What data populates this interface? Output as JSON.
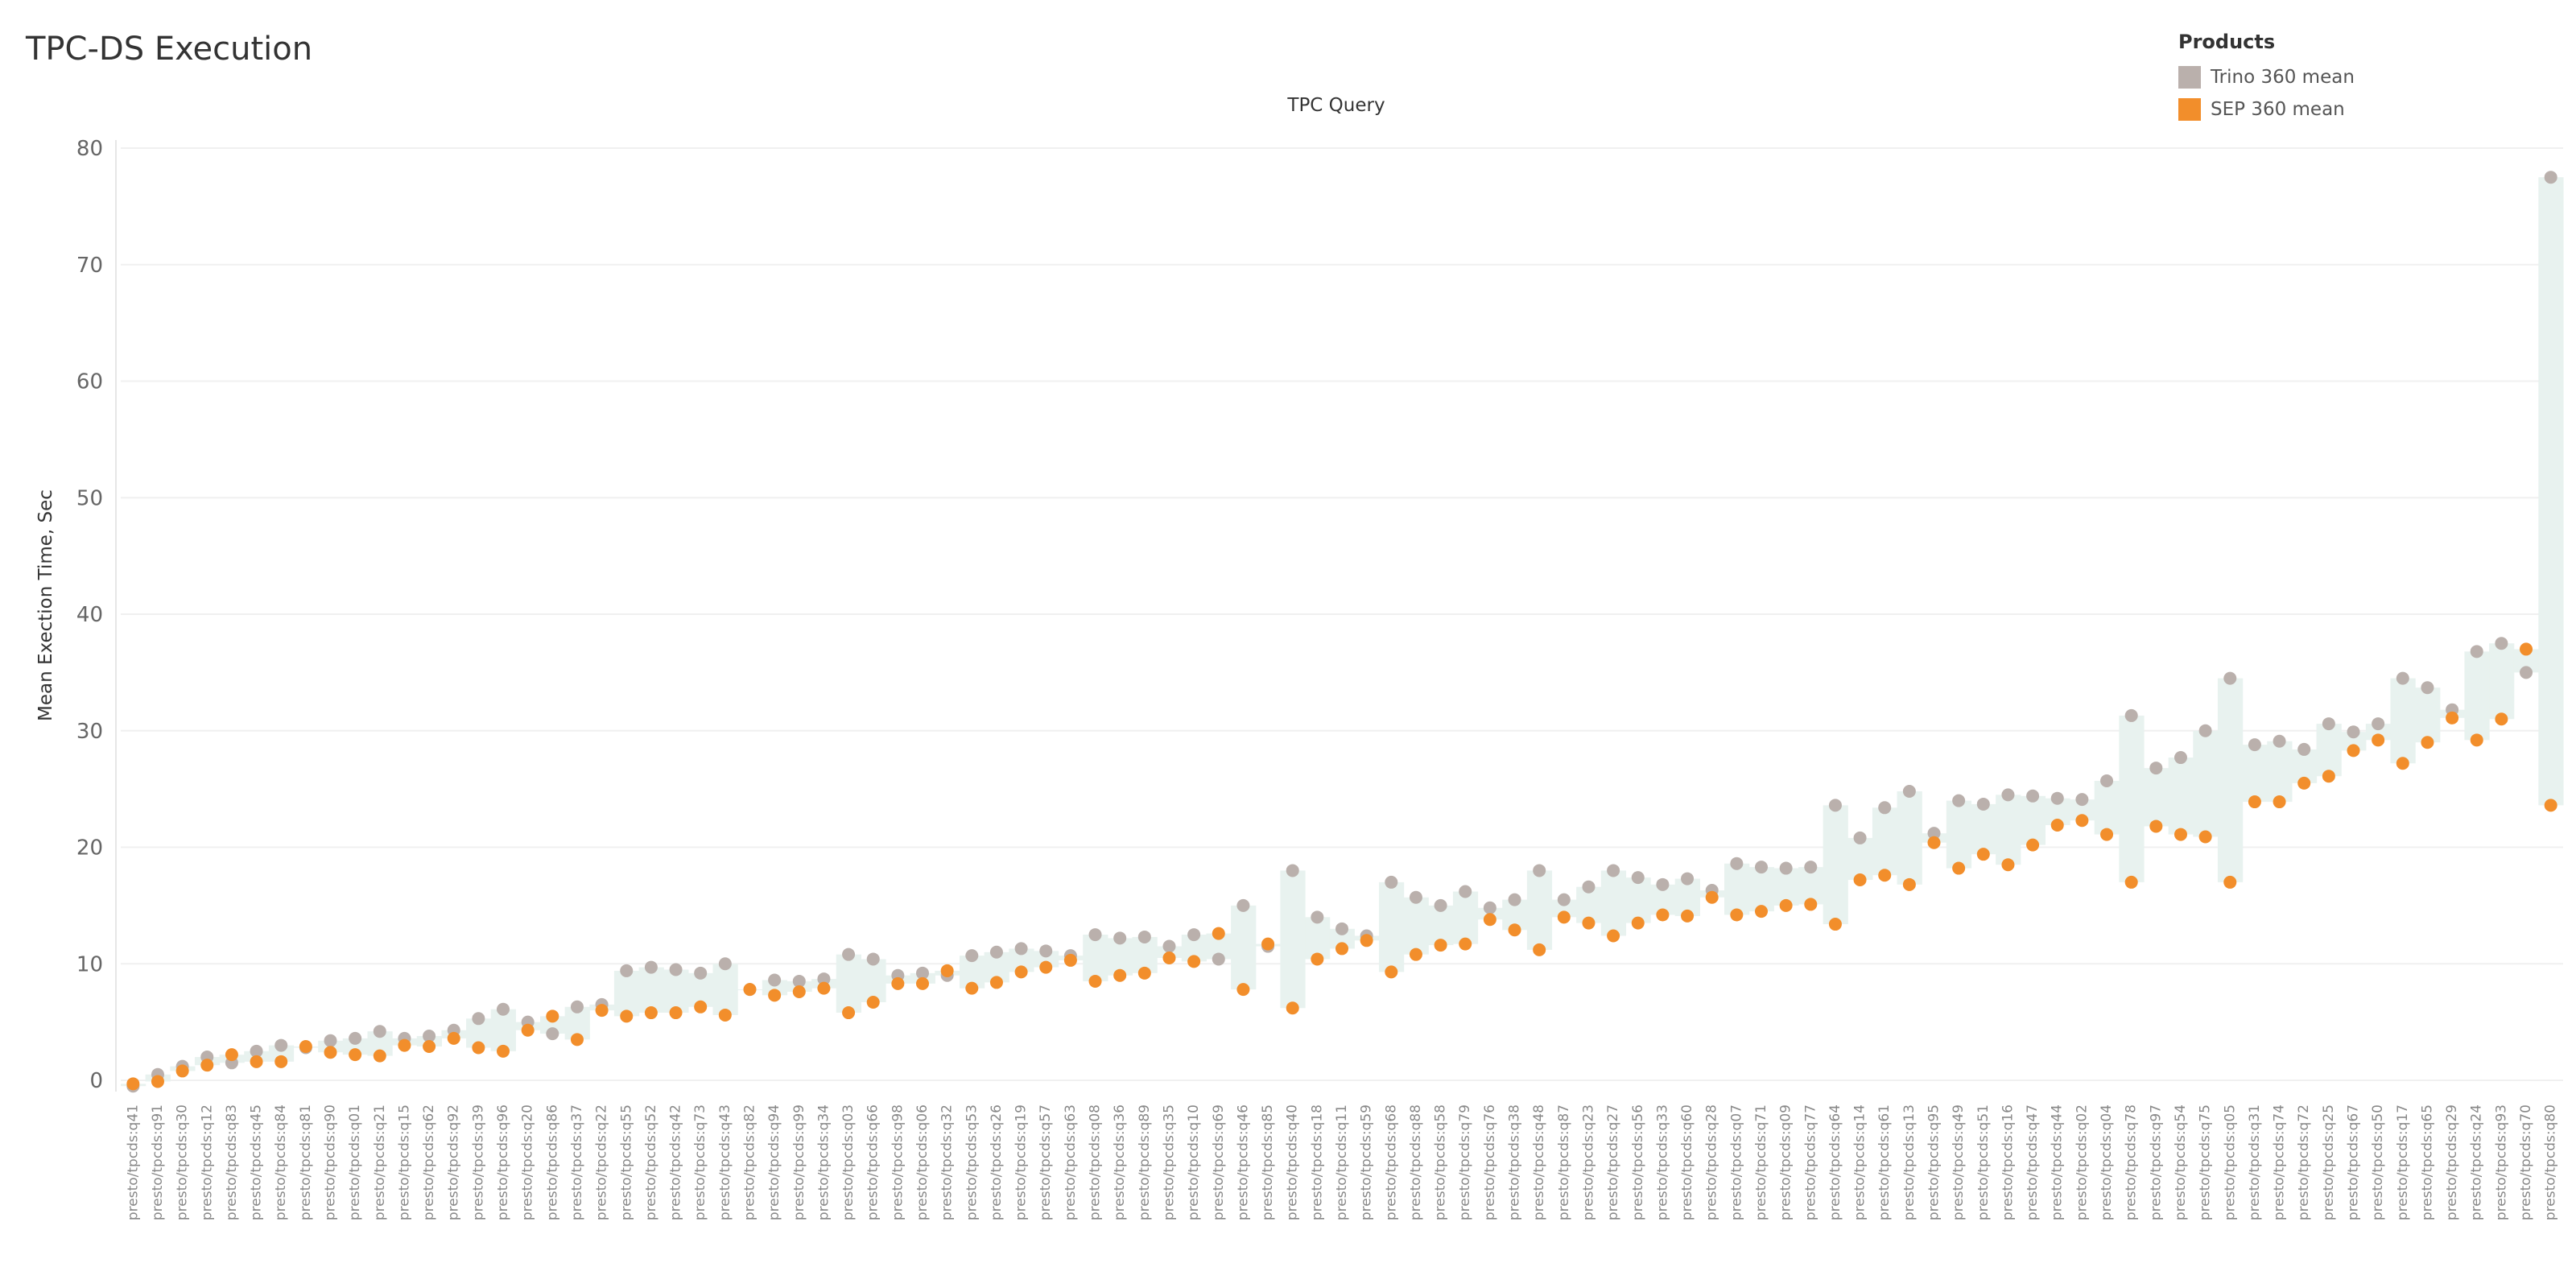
{
  "title": "TPC-DS Execution",
  "legend": {
    "title": "Products",
    "items": [
      {
        "label": "Trino 360 mean",
        "color": "#bab0ac"
      },
      {
        "label": "SEP 360 mean",
        "color": "#f28e2b"
      }
    ]
  },
  "colors": {
    "band": "#e8f2ef",
    "grid": "#f0f0f0",
    "trino": "#bab0ac",
    "sep": "#f28e2b"
  },
  "chart_data": {
    "type": "scatter",
    "title": "TPC-DS Execution",
    "xlabel": "TPC Query",
    "ylabel": "Mean Exection Time, Sec",
    "ylim": [
      0,
      80
    ],
    "yticks": [
      0,
      10,
      20,
      30,
      40,
      50,
      60,
      70,
      80
    ],
    "grid": true,
    "legend_position": "top-right",
    "categories": [
      "presto/tpcds:q41",
      "presto/tpcds:q91",
      "presto/tpcds:q30",
      "presto/tpcds:q12",
      "presto/tpcds:q83",
      "presto/tpcds:q45",
      "presto/tpcds:q84",
      "presto/tpcds:q81",
      "presto/tpcds:q90",
      "presto/tpcds:q01",
      "presto/tpcds:q21",
      "presto/tpcds:q15",
      "presto/tpcds:q62",
      "presto/tpcds:q92",
      "presto/tpcds:q39",
      "presto/tpcds:q96",
      "presto/tpcds:q20",
      "presto/tpcds:q86",
      "presto/tpcds:q37",
      "presto/tpcds:q22",
      "presto/tpcds:q55",
      "presto/tpcds:q52",
      "presto/tpcds:q42",
      "presto/tpcds:q73",
      "presto/tpcds:q43",
      "presto/tpcds:q82",
      "presto/tpcds:q94",
      "presto/tpcds:q99",
      "presto/tpcds:q34",
      "presto/tpcds:q03",
      "presto/tpcds:q66",
      "presto/tpcds:q98",
      "presto/tpcds:q06",
      "presto/tpcds:q32",
      "presto/tpcds:q53",
      "presto/tpcds:q26",
      "presto/tpcds:q19",
      "presto/tpcds:q57",
      "presto/tpcds:q63",
      "presto/tpcds:q08",
      "presto/tpcds:q36",
      "presto/tpcds:q89",
      "presto/tpcds:q35",
      "presto/tpcds:q10",
      "presto/tpcds:q69",
      "presto/tpcds:q46",
      "presto/tpcds:q85",
      "presto/tpcds:q40",
      "presto/tpcds:q18",
      "presto/tpcds:q11",
      "presto/tpcds:q59",
      "presto/tpcds:q68",
      "presto/tpcds:q88",
      "presto/tpcds:q58",
      "presto/tpcds:q79",
      "presto/tpcds:q76",
      "presto/tpcds:q38",
      "presto/tpcds:q48",
      "presto/tpcds:q87",
      "presto/tpcds:q23",
      "presto/tpcds:q27",
      "presto/tpcds:q56",
      "presto/tpcds:q33",
      "presto/tpcds:q60",
      "presto/tpcds:q28",
      "presto/tpcds:q07",
      "presto/tpcds:q71",
      "presto/tpcds:q09",
      "presto/tpcds:q77",
      "presto/tpcds:q64",
      "presto/tpcds:q14",
      "presto/tpcds:q61",
      "presto/tpcds:q13",
      "presto/tpcds:q95",
      "presto/tpcds:q49",
      "presto/tpcds:q51",
      "presto/tpcds:q16",
      "presto/tpcds:q47",
      "presto/tpcds:q44",
      "presto/tpcds:q02",
      "presto/tpcds:q04",
      "presto/tpcds:q78",
      "presto/tpcds:q97",
      "presto/tpcds:q54",
      "presto/tpcds:q75",
      "presto/tpcds:q05",
      "presto/tpcds:q31",
      "presto/tpcds:q74",
      "presto/tpcds:q72",
      "presto/tpcds:q25",
      "presto/tpcds:q67",
      "presto/tpcds:q50",
      "presto/tpcds:q17",
      "presto/tpcds:q65",
      "presto/tpcds:q29",
      "presto/tpcds:q24",
      "presto/tpcds:q93",
      "presto/tpcds:q70",
      "presto/tpcds:q80"
    ],
    "series": [
      {
        "name": "Trino 360 mean",
        "values": [
          -0.5,
          0.5,
          1.2,
          2.0,
          1.5,
          2.5,
          3.0,
          2.8,
          3.4,
          3.6,
          4.2,
          3.6,
          3.8,
          4.3,
          5.3,
          6.1,
          5.0,
          4.0,
          6.3,
          6.5,
          9.4,
          9.7,
          9.5,
          9.2,
          10.0,
          7.8,
          8.6,
          8.5,
          8.7,
          10.8,
          10.4,
          9.0,
          9.2,
          9.0,
          10.7,
          11.0,
          11.3,
          11.1,
          10.7,
          12.5,
          12.2,
          12.3,
          11.5,
          12.5,
          10.4,
          15.0,
          11.5,
          18.0,
          14.0,
          13.0,
          12.4,
          17.0,
          15.7,
          15.0,
          16.2,
          14.8,
          15.5,
          18.0,
          15.5,
          16.6,
          18.0,
          17.4,
          16.8,
          17.3,
          16.3,
          18.6,
          18.3,
          18.2,
          18.3,
          23.6,
          20.8,
          23.4,
          24.8,
          21.2,
          24.0,
          23.7,
          24.5,
          24.4,
          24.2,
          24.1,
          25.7,
          31.3,
          26.8,
          27.7,
          30.0,
          34.5,
          28.8,
          29.1,
          28.4,
          30.6,
          29.9,
          30.6,
          34.5,
          33.7,
          31.8,
          36.8,
          37.5,
          35.0,
          77.5
        ]
      },
      {
        "name": "SEP 360 mean",
        "values": [
          -0.3,
          -0.1,
          0.8,
          1.3,
          2.2,
          1.6,
          1.6,
          2.9,
          2.4,
          2.2,
          2.1,
          3.0,
          2.9,
          3.6,
          2.8,
          2.5,
          4.3,
          5.5,
          3.5,
          6.0,
          5.5,
          5.8,
          5.8,
          6.3,
          5.6,
          7.8,
          7.3,
          7.6,
          7.9,
          5.8,
          6.7,
          8.3,
          8.3,
          9.4,
          7.9,
          8.4,
          9.3,
          9.7,
          10.3,
          8.5,
          9.0,
          9.2,
          10.5,
          10.2,
          12.6,
          7.8,
          11.7,
          6.2,
          10.4,
          11.3,
          12.0,
          9.3,
          10.8,
          11.6,
          11.7,
          13.8,
          12.9,
          11.2,
          14.0,
          13.5,
          12.4,
          13.5,
          14.2,
          14.1,
          15.7,
          14.2,
          14.5,
          15.0,
          15.1,
          13.4,
          17.2,
          17.6,
          16.8,
          20.4,
          18.2,
          19.4,
          18.5,
          20.2,
          21.9,
          22.3,
          21.1,
          17.0,
          21.8,
          21.1,
          20.9,
          17.0,
          23.9,
          23.9,
          25.5,
          26.1,
          28.3,
          29.2,
          27.2,
          29.0,
          31.1,
          29.2,
          31.0,
          37.0,
          23.6
        ]
      }
    ]
  }
}
